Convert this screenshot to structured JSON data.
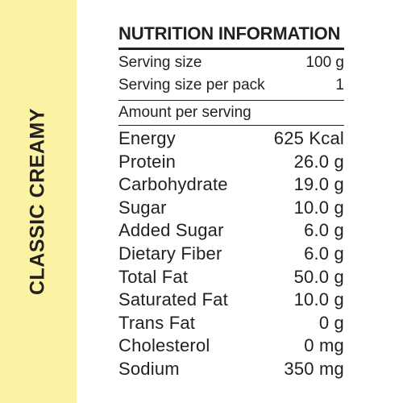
{
  "side_label": "CLASSIC CREAMY",
  "title": "NUTRITION INFORMATION",
  "serving": [
    {
      "label": "Serving size",
      "value": "100 g"
    },
    {
      "label": "Serving size per pack",
      "value": "1"
    }
  ],
  "amount_header": "Amount per serving",
  "energy": {
    "label": "Energy",
    "value": "625 Kcal"
  },
  "nutrients": [
    {
      "label": "Protein",
      "value": "26.0 g"
    },
    {
      "label": "Carbohydrate",
      "value": "19.0 g"
    },
    {
      "label": "Sugar",
      "value": "10.0 g"
    },
    {
      "label": "Added Sugar",
      "value": "6.0 g"
    },
    {
      "label": "Dietary Fiber",
      "value": "6.0 g"
    },
    {
      "label": "Total Fat",
      "value": "50.0 g"
    },
    {
      "label": "Saturated Fat",
      "value": "10.0 g"
    },
    {
      "label": "Trans Fat",
      "value": "0 g"
    },
    {
      "label": "Cholesterol",
      "value": "0 mg"
    },
    {
      "label": "Sodium",
      "value": "350 mg"
    }
  ],
  "colors": {
    "band": "#fbf2a4",
    "text": "#231f20"
  }
}
